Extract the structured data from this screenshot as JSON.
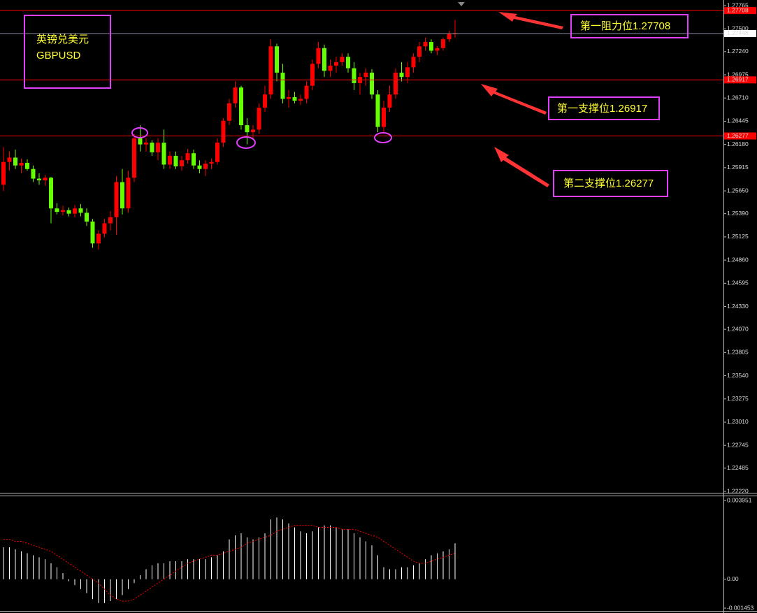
{
  "chart_data": [
    {
      "type": "candlestick",
      "title": "英镑兑美元",
      "subtitle": "GBPUSD",
      "up_color": "#ff0000",
      "down_color": "#66ff00",
      "level_color": "#ff0000",
      "open": [
        1.2572,
        1.2598,
        1.2603,
        1.2594,
        1.2597,
        1.259,
        1.2579,
        1.2577,
        1.258,
        1.2545,
        1.2541,
        1.2543,
        1.2539,
        1.2545,
        1.254,
        1.253,
        1.2505,
        1.2516,
        1.2528,
        1.2535,
        1.2575,
        1.2545,
        1.258,
        1.2625,
        1.2618,
        1.262,
        1.2609,
        1.262,
        1.2595,
        1.2605,
        1.2593,
        1.26,
        1.2608,
        1.2594,
        1.259,
        1.2596,
        1.2598,
        1.262,
        1.2645,
        1.2665,
        1.2683,
        1.264,
        1.2632,
        1.2635,
        1.266,
        1.2675,
        1.273,
        1.27,
        1.267,
        1.2672,
        1.2668,
        1.267,
        1.2685,
        1.271,
        1.2728,
        1.2702,
        1.2708,
        1.2712,
        1.2718,
        1.2705,
        1.2688,
        1.2695,
        1.27,
        1.2675,
        1.2638,
        1.266,
        1.2675,
        1.27,
        1.2695,
        1.2706,
        1.2718,
        1.273,
        1.2735,
        1.2725,
        1.2728,
        1.2738,
        1.2744
      ],
      "high": [
        1.2615,
        1.261,
        1.2612,
        1.2602,
        1.2601,
        1.2594,
        1.2585,
        1.2583,
        1.2581,
        1.2551,
        1.2548,
        1.2546,
        1.2549,
        1.255,
        1.2545,
        1.2533,
        1.252,
        1.2533,
        1.2542,
        1.2582,
        1.259,
        1.2588,
        1.263,
        1.264,
        1.2625,
        1.2623,
        1.2625,
        1.2635,
        1.261,
        1.261,
        1.2605,
        1.2613,
        1.2612,
        1.26,
        1.26,
        1.2602,
        1.2625,
        1.2648,
        1.267,
        1.269,
        1.2685,
        1.2648,
        1.264,
        1.2665,
        1.2685,
        1.2738,
        1.2733,
        1.271,
        1.268,
        1.2678,
        1.2675,
        1.269,
        1.2715,
        1.2735,
        1.2732,
        1.2715,
        1.2718,
        1.2722,
        1.2722,
        1.2712,
        1.27,
        1.2705,
        1.2704,
        1.268,
        1.2668,
        1.2685,
        1.2705,
        1.2712,
        1.2712,
        1.2722,
        1.2735,
        1.274,
        1.2738,
        1.273,
        1.274,
        1.2748,
        1.276
      ],
      "low": [
        1.2565,
        1.2588,
        1.259,
        1.2585,
        1.2588,
        1.2575,
        1.2572,
        1.2571,
        1.2528,
        1.2538,
        1.2537,
        1.2536,
        1.2535,
        1.2536,
        1.2525,
        1.25,
        1.2498,
        1.2512,
        1.252,
        1.2515,
        1.2538,
        1.254,
        1.2575,
        1.261,
        1.261,
        1.2605,
        1.26,
        1.259,
        1.259,
        1.259,
        1.2588,
        1.2596,
        1.259,
        1.2585,
        1.2582,
        1.259,
        1.2595,
        1.2615,
        1.264,
        1.266,
        1.2635,
        1.2618,
        1.2625,
        1.263,
        1.2655,
        1.267,
        1.269,
        1.2665,
        1.266,
        1.2665,
        1.2663,
        1.2665,
        1.268,
        1.2705,
        1.2695,
        1.2695,
        1.27,
        1.2708,
        1.27,
        1.268,
        1.2675,
        1.2685,
        1.267,
        1.2632,
        1.263,
        1.2655,
        1.267,
        1.269,
        1.2688,
        1.27,
        1.2712,
        1.2725,
        1.2722,
        1.272,
        1.2725,
        1.2735,
        1.274
      ],
      "close": [
        1.2598,
        1.2603,
        1.2594,
        1.2597,
        1.259,
        1.2579,
        1.2577,
        1.258,
        1.2545,
        1.2541,
        1.2543,
        1.2539,
        1.2545,
        1.254,
        1.253,
        1.2505,
        1.2516,
        1.2528,
        1.2535,
        1.2575,
        1.2545,
        1.258,
        1.2625,
        1.2618,
        1.262,
        1.2609,
        1.262,
        1.2595,
        1.2605,
        1.2593,
        1.26,
        1.2608,
        1.2594,
        1.259,
        1.2596,
        1.2598,
        1.262,
        1.2645,
        1.2665,
        1.2683,
        1.264,
        1.2632,
        1.2635,
        1.266,
        1.2675,
        1.273,
        1.27,
        1.267,
        1.2672,
        1.2668,
        1.267,
        1.2685,
        1.271,
        1.2728,
        1.2702,
        1.2708,
        1.2712,
        1.2718,
        1.2705,
        1.2688,
        1.2695,
        1.27,
        1.2675,
        1.2638,
        1.266,
        1.2675,
        1.27,
        1.2695,
        1.2706,
        1.2718,
        1.273,
        1.2735,
        1.2725,
        1.2728,
        1.2738,
        1.2744,
        1.27446
      ],
      "ylim": [
        1.2222,
        1.27765
      ],
      "yticks": [
        1.27765,
        {
          "value": 1.275,
          "label": "1.27500"
        },
        {
          "value": 1.2724,
          "label": "1.27240"
        },
        1.26975,
        {
          "value": 1.2671,
          "label": "1.26710"
        },
        1.26445,
        {
          "value": 1.2618,
          "label": "1.26180"
        },
        1.25915,
        {
          "value": 1.2565,
          "label": "1.25650"
        },
        {
          "value": 1.2539,
          "label": "1.25390"
        },
        1.25125,
        {
          "value": 1.2486,
          "label": "1.24860"
        },
        1.24595,
        {
          "value": 1.2433,
          "label": "1.24330"
        },
        {
          "value": 1.2407,
          "label": "1.24070"
        },
        1.23805,
        {
          "value": 1.2354,
          "label": "1.23540"
        },
        1.23275,
        {
          "value": 1.2301,
          "label": "1.23010"
        },
        1.22745,
        1.22485,
        {
          "value": 1.2222,
          "label": "1.22220"
        }
      ],
      "levels": [
        1.27708,
        1.26917,
        1.26277
      ],
      "current_price": 1.27446,
      "annotations": [
        "第一阻力位1.27708",
        "第一支撑位1.26917",
        "第二支撑位1.26277"
      ]
    },
    {
      "type": "macd",
      "series": [
        {
          "color": "#ffffff",
          "values": [
            0.0016,
            0.0016,
            0.0015,
            0.0014,
            0.0013,
            0.0012,
            0.0011,
            0.001,
            0.0008,
            0.0006,
            0.0003,
            -0.0001,
            -0.0003,
            -0.0005,
            -0.0007,
            -0.001,
            -0.0012,
            -0.0012,
            -0.0011,
            -0.001,
            -0.0008,
            -0.0005,
            -0.0002,
            0.0002,
            0.0005,
            0.0007,
            0.0008,
            0.0008,
            0.0009,
            0.0009,
            0.0009,
            0.001,
            0.001,
            0.001,
            0.001,
            0.0011,
            0.0012,
            0.0014,
            0.002,
            0.0022,
            0.0023,
            0.0021,
            0.002,
            0.0021,
            0.0023,
            0.003,
            0.0031,
            0.003,
            0.0028,
            0.0026,
            0.0024,
            0.0023,
            0.0024,
            0.0026,
            0.0027,
            0.0027,
            0.0026,
            0.0025,
            0.0025,
            0.0023,
            0.0021,
            0.0019,
            0.0017,
            0.0012,
            0.0006,
            0.0005,
            0.0005,
            0.0006,
            0.0006,
            0.0007,
            0.0008,
            0.001,
            0.0012,
            0.0013,
            0.0014,
            0.0015,
            0.0018
          ]
        },
        {
          "color": "#ff0000",
          "values": [
            0.002,
            0.002,
            0.0019,
            0.0019,
            0.0018,
            0.0017,
            0.0016,
            0.0015,
            0.0014,
            0.0012,
            0.001,
            0.0008,
            0.0006,
            0.0004,
            0.0002,
            0.0,
            -0.0002,
            -0.0005,
            -0.0008,
            -0.001,
            -0.0011,
            -0.0011,
            -0.001,
            -0.0008,
            -0.0006,
            -0.0004,
            -0.0002,
            0.0,
            0.0002,
            0.0004,
            0.0006,
            0.0008,
            0.0009,
            0.001,
            0.0011,
            0.0012,
            0.0012,
            0.0013,
            0.0014,
            0.0015,
            0.0016,
            0.0018,
            0.0019,
            0.002,
            0.0021,
            0.0022,
            0.0024,
            0.0025,
            0.0026,
            0.0027,
            0.0027,
            0.0027,
            0.0027,
            0.0026,
            0.0026,
            0.0026,
            0.0026,
            0.0025,
            0.0025,
            0.0025,
            0.0024,
            0.0023,
            0.0022,
            0.0021,
            0.0019,
            0.0017,
            0.0015,
            0.0013,
            0.0011,
            0.0009,
            0.0008,
            0.0008,
            0.0009,
            0.001,
            0.0011,
            0.0012,
            0.0013
          ]
        }
      ],
      "ylim": [
        -0.001453,
        0.003951
      ],
      "yticks": [
        0.003951,
        {
          "value": 0,
          "label": "0.00"
        },
        -0.001453
      ]
    }
  ]
}
